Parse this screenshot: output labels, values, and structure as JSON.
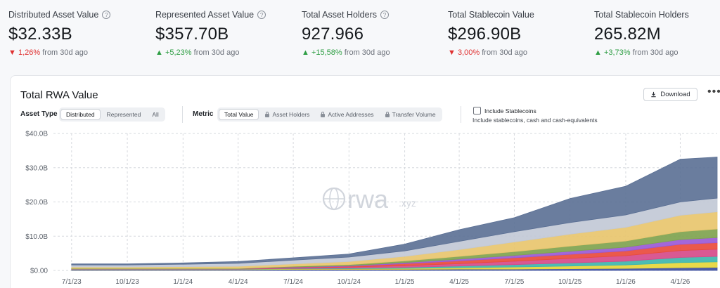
{
  "stats": [
    {
      "label": "Distributed Asset Value",
      "value": "$32.33B",
      "change": "1,26%",
      "direction": "down",
      "suffix": "from 30d ago",
      "info": true
    },
    {
      "label": "Represented Asset Value",
      "value": "$357.70B",
      "change": "+5,23%",
      "direction": "up",
      "suffix": "from 30d ago",
      "info": true
    },
    {
      "label": "Total Asset Holders",
      "value": "927.966",
      "change": "+15,58%",
      "direction": "up",
      "suffix": "from 30d ago",
      "info": true
    },
    {
      "label": "Total Stablecoin Value",
      "value": "$296.90B",
      "change": "3,00%",
      "direction": "down",
      "suffix": "from 30d ago",
      "info": false
    },
    {
      "label": "Total Stablecoin Holders",
      "value": "265.82M",
      "change": "+3,73%",
      "direction": "up",
      "suffix": "from 30d ago",
      "info": false
    }
  ],
  "card": {
    "title": "Total RWA Value",
    "download_label": "Download",
    "more_glyph": "•••"
  },
  "controls": {
    "asset_type_label": "Asset Type",
    "asset_type_options": [
      "Distributed",
      "Represented",
      "All"
    ],
    "asset_type_selected": "Distributed",
    "metric_label": "Metric",
    "metric_options": [
      "Total Value",
      "Asset Holders",
      "Active Addresses",
      "Transfer Volume"
    ],
    "metric_selected": "Total Value",
    "include_stablecoins_label": "Include Stablecoins",
    "include_stablecoins_checked": false,
    "include_stablecoins_sub": "Include stablecoins, cash and cash-equivalents"
  },
  "watermark": {
    "main": "rwa",
    "suffix": ".xyz"
  },
  "chart_data": {
    "type": "area",
    "stacked": true,
    "y_tick_labels": [
      "$0.00",
      "$10.0B",
      "$20.0B",
      "$30.0B",
      "$40.0B"
    ],
    "ylim": [
      0,
      40
    ],
    "y_unit": "$B",
    "x_tick_labels": [
      "7/1/23",
      "10/1/23",
      "1/1/24",
      "4/1/24",
      "7/1/24",
      "10/1/24",
      "1/1/25",
      "4/1/25",
      "7/1/25",
      "10/1/25",
      "1/1/26",
      "4/1/26"
    ],
    "x": [
      "7/1/23",
      "10/1/23",
      "1/1/24",
      "4/1/24",
      "7/1/24",
      "10/1/24",
      "1/1/25",
      "4/1/25",
      "7/1/25",
      "10/1/25",
      "1/1/26",
      "4/1/26",
      "6/1/26"
    ],
    "grid": true,
    "series": [
      {
        "color": "#3d4f9f",
        "values": [
          0.2,
          0.2,
          0.2,
          0.2,
          0.3,
          0.3,
          0.3,
          0.4,
          0.4,
          0.5,
          0.6,
          0.8,
          0.9
        ]
      },
      {
        "color": "#e7d63a",
        "values": [
          0.1,
          0.1,
          0.1,
          0.1,
          0.2,
          0.2,
          0.3,
          0.4,
          0.6,
          0.8,
          1.0,
          1.5,
          1.6
        ]
      },
      {
        "color": "#3fb6ad",
        "values": [
          0.1,
          0.1,
          0.1,
          0.1,
          0.1,
          0.2,
          0.3,
          0.5,
          0.7,
          0.9,
          1.1,
          1.5,
          1.6
        ]
      },
      {
        "color": "#d64b8a",
        "values": [
          0.1,
          0.1,
          0.1,
          0.1,
          0.2,
          0.3,
          0.5,
          0.7,
          1.0,
          1.3,
          1.6,
          2.0,
          2.1
        ]
      },
      {
        "color": "#e94b3c",
        "values": [
          0.0,
          0.0,
          0.0,
          0.0,
          0.1,
          0.2,
          0.6,
          0.8,
          1.0,
          1.2,
          1.4,
          1.8,
          1.9
        ]
      },
      {
        "color": "#9a5ad6",
        "values": [
          0.0,
          0.0,
          0.0,
          0.0,
          0.1,
          0.2,
          0.3,
          0.5,
          0.7,
          0.9,
          1.1,
          1.4,
          1.5
        ]
      },
      {
        "color": "#7fa34f",
        "values": [
          0.1,
          0.1,
          0.1,
          0.1,
          0.2,
          0.3,
          0.5,
          0.8,
          1.1,
          1.5,
          1.8,
          2.3,
          2.5
        ]
      },
      {
        "color": "#e8c56e",
        "values": [
          0.4,
          0.4,
          0.5,
          0.6,
          0.7,
          0.9,
          1.3,
          2.0,
          2.8,
          3.5,
          4.0,
          4.8,
          5.0
        ]
      },
      {
        "color": "#c2c9d6",
        "values": [
          0.6,
          0.6,
          0.7,
          0.9,
          1.1,
          1.3,
          1.6,
          2.4,
          3.0,
          3.4,
          3.6,
          3.9,
          4.0
        ]
      },
      {
        "color": "#5a6f94",
        "values": [
          0.3,
          0.3,
          0.4,
          0.5,
          0.7,
          0.9,
          2.0,
          3.4,
          4.1,
          7.0,
          8.4,
          12.5,
          12.0
        ]
      }
    ]
  }
}
